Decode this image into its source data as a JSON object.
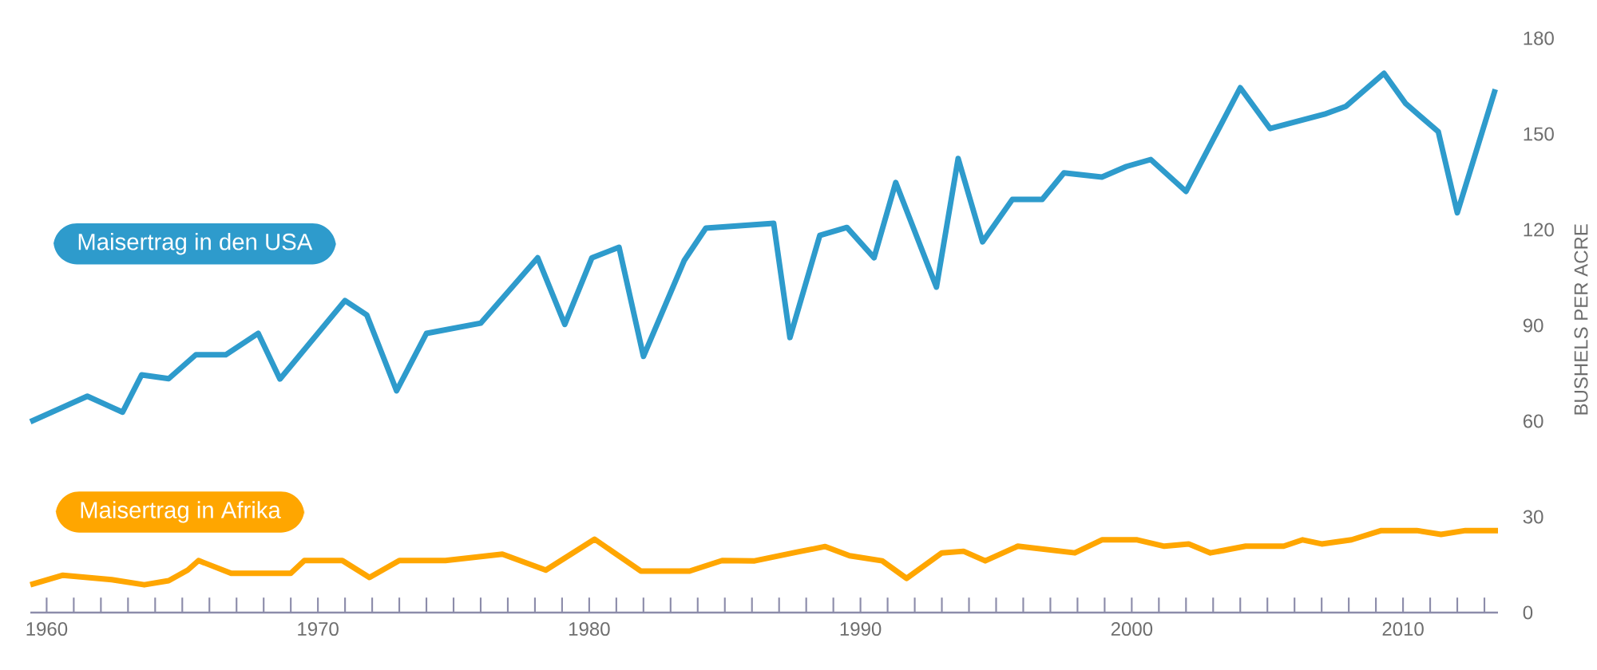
{
  "chart_data": {
    "type": "line",
    "ylabel": "BUSHELS PER ACRE",
    "xlim": [
      1959.4,
      2013.5
    ],
    "xticks": [
      1960,
      {
        "value": 1961,
        "label": null
      },
      {
        "value": 1962,
        "label": null
      },
      {
        "value": 1963,
        "label": null
      },
      {
        "value": 1964,
        "label": null
      },
      {
        "value": 1965,
        "label": null
      },
      {
        "value": 1966,
        "label": null
      },
      {
        "value": 1967,
        "label": null
      },
      {
        "value": 1968,
        "label": null
      },
      {
        "value": 1969,
        "label": null
      },
      1970,
      {
        "value": 1971,
        "label": null
      },
      {
        "value": 1972,
        "label": null
      },
      {
        "value": 1973,
        "label": null
      },
      {
        "value": 1974,
        "label": null
      },
      {
        "value": 1975,
        "label": null
      },
      {
        "value": 1976,
        "label": null
      },
      {
        "value": 1977,
        "label": null
      },
      {
        "value": 1978,
        "label": null
      },
      {
        "value": 1979,
        "label": null
      },
      1980,
      {
        "value": 1981,
        "label": null
      },
      {
        "value": 1982,
        "label": null
      },
      {
        "value": 1983,
        "label": null
      },
      {
        "value": 1984,
        "label": null
      },
      {
        "value": 1985,
        "label": null
      },
      {
        "value": 1986,
        "label": null
      },
      {
        "value": 1987,
        "label": null
      },
      {
        "value": 1988,
        "label": null
      },
      {
        "value": 1989,
        "label": null
      },
      1990,
      {
        "value": 1991,
        "label": null
      },
      {
        "value": 1992,
        "label": null
      },
      {
        "value": 1993,
        "label": null
      },
      {
        "value": 1994,
        "label": null
      },
      {
        "value": 1995,
        "label": null
      },
      {
        "value": 1996,
        "label": null
      },
      {
        "value": 1997,
        "label": null
      },
      {
        "value": 1998,
        "label": null
      },
      {
        "value": 1999,
        "label": null
      },
      2000,
      {
        "value": 2001,
        "label": null
      },
      {
        "value": 2002,
        "label": null
      },
      {
        "value": 2003,
        "label": null
      },
      {
        "value": 2004,
        "label": null
      },
      {
        "value": 2005,
        "label": null
      },
      {
        "value": 2006,
        "label": null
      },
      {
        "value": 2007,
        "label": null
      },
      {
        "value": 2008,
        "label": null
      },
      {
        "value": 2009,
        "label": null
      },
      2010,
      {
        "value": 2011,
        "label": null
      },
      {
        "value": 2012,
        "label": null
      },
      {
        "value": 2013,
        "label": null
      }
    ],
    "ylim": [
      0,
      180
    ],
    "yticks": [
      0,
      30,
      60,
      90,
      120,
      150,
      180
    ],
    "grid": false,
    "marker": "none",
    "line_style": "solid",
    "series": [
      {
        "name": "Maisertrag in den USA",
        "color": "#2e9bcc",
        "x": [
          1959.4,
          1961.5,
          1962.8,
          1963.5,
          1964.5,
          1965.5,
          1966.6,
          1967.8,
          1968.6,
          1971.0,
          1971.8,
          1972.9,
          1974.0,
          1976.0,
          1978.1,
          1979.1,
          1980.1,
          1981.1,
          1982.0,
          1983.5,
          1984.3,
          1986.8,
          1987.4,
          1988.5,
          1989.5,
          1990.5,
          1991.3,
          1992.8,
          1993.6,
          1994.5,
          1995.6,
          1996.7,
          1997.5,
          1998.9,
          1999.8,
          2000.7,
          2002.0,
          2004.0,
          2005.1,
          2007.1,
          2007.9,
          2009.3,
          2010.1,
          2011.3,
          2012.0,
          2013.4
        ],
        "values": [
          59.8,
          67.8,
          62.8,
          74.5,
          73.3,
          80.8,
          80.8,
          87.5,
          73.2,
          97.8,
          93.3,
          69.5,
          87.5,
          90.7,
          111.2,
          90.3,
          111.2,
          114.5,
          80.3,
          110.3,
          120.5,
          122,
          86.2,
          118.2,
          120.7,
          111.2,
          134.8,
          102,
          142.3,
          116.2,
          129.5,
          129.5,
          137.8,
          136.5,
          139.8,
          142,
          132,
          164.5,
          151.7,
          156.2,
          158.7,
          169,
          159.5,
          150.7,
          125.3,
          164
        ]
      },
      {
        "name": "Maisertrag in Afrika",
        "color": "#ffa600",
        "x": [
          1959.4,
          1960.6,
          1962.4,
          1963.6,
          1964.5,
          1965.2,
          1965.6,
          1966.8,
          1969.0,
          1969.5,
          1970.9,
          1971.9,
          1973.0,
          1974.7,
          1976.8,
          1978.4,
          1980.2,
          1981.9,
          1983.7,
          1984.9,
          1986.1,
          1987.7,
          1988.7,
          1989.6,
          1990.8,
          1991.7,
          1993.0,
          1993.8,
          1994.6,
          1995.8,
          1997.9,
          1998.9,
          2000.2,
          2001.2,
          2002.1,
          2002.9,
          2004.2,
          2005.6,
          2006.3,
          2007.0,
          2008.1,
          2009.2,
          2010.5,
          2011.4,
          2012.3,
          2013.5
        ],
        "values": [
          8.7,
          11.7,
          10.3,
          8.7,
          10,
          13.3,
          16.3,
          12.3,
          12.3,
          16.3,
          16.3,
          11,
          16.3,
          16.3,
          18.3,
          13.3,
          23,
          13,
          13,
          16.3,
          16.2,
          19,
          20.7,
          17.8,
          16.2,
          10.7,
          18.7,
          19.2,
          16.2,
          20.8,
          18.7,
          22.8,
          22.8,
          20.8,
          21.5,
          18.7,
          20.8,
          20.8,
          22.8,
          21.5,
          22.8,
          25.7,
          25.7,
          24.5,
          25.7,
          25.7
        ]
      }
    ]
  }
}
